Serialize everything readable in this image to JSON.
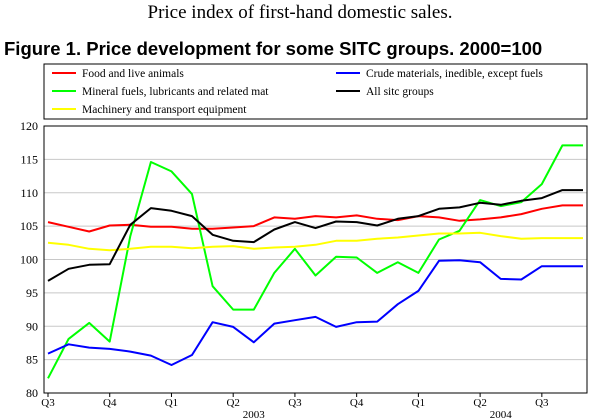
{
  "supertitle": "Price index of first-hand domestic sales.",
  "chart_data": {
    "type": "line",
    "title": "Figure 1. Price development for some SITC groups. 2000=100",
    "xlabel": "",
    "ylabel": "",
    "ylim": [
      80,
      120
    ],
    "yticks": [
      80,
      85,
      90,
      95,
      100,
      105,
      110,
      115,
      120
    ],
    "x": [
      "2002-07",
      "2002-08",
      "2002-09",
      "2002-10",
      "2002-11",
      "2002-12",
      "2003-01",
      "2003-02",
      "2003-03",
      "2003-04",
      "2003-05",
      "2003-06",
      "2003-07",
      "2003-08",
      "2003-09",
      "2003-10",
      "2003-11",
      "2003-12",
      "2004-01",
      "2004-02",
      "2004-03",
      "2004-04",
      "2004-05",
      "2004-06",
      "2004-07",
      "2004-08",
      "2004-09"
    ],
    "quarter_ticks": [
      {
        "label": "Q3",
        "index": 0
      },
      {
        "label": "Q4",
        "index": 3
      },
      {
        "label": "Q1",
        "index": 6
      },
      {
        "label": "Q2",
        "index": 9
      },
      {
        "label": "Q3",
        "index": 12
      },
      {
        "label": "Q4",
        "index": 15
      },
      {
        "label": "Q1",
        "index": 18
      },
      {
        "label": "Q2",
        "index": 21
      },
      {
        "label": "Q3",
        "index": 24
      }
    ],
    "year_labels": [
      {
        "label": "2003",
        "index": 10
      },
      {
        "label": "2004",
        "index": 22
      }
    ],
    "grid": "horizontal",
    "series": [
      {
        "name": "Food and live animals",
        "color": "#ff0000",
        "values": [
          105.6,
          104.9,
          104.2,
          105.1,
          105.2,
          104.9,
          104.9,
          104.6,
          104.6,
          104.8,
          105.0,
          106.3,
          106.1,
          106.5,
          106.3,
          106.6,
          106.1,
          105.9,
          106.5,
          106.3,
          105.8,
          106.0,
          106.3,
          106.8,
          107.6,
          108.1,
          108.1
        ]
      },
      {
        "name": "Mineral fuels, lubricants and related mat",
        "color": "#00ff00",
        "values": [
          82.2,
          88.1,
          90.5,
          87.7,
          103.5,
          114.6,
          113.2,
          109.8,
          96.0,
          92.5,
          92.5,
          98.0,
          101.6,
          97.6,
          100.4,
          100.3,
          98.0,
          99.6,
          98.0,
          103.0,
          104.3,
          108.9,
          108.0,
          108.6,
          111.3,
          117.1,
          117.1
        ]
      },
      {
        "name": "Machinery and transport equipment",
        "color": "#ffff00",
        "values": [
          102.5,
          102.2,
          101.6,
          101.4,
          101.6,
          101.9,
          101.9,
          101.7,
          101.9,
          102.0,
          101.6,
          101.8,
          101.9,
          102.2,
          102.8,
          102.8,
          103.1,
          103.3,
          103.6,
          103.9,
          103.9,
          104.0,
          103.5,
          103.1,
          103.2,
          103.2,
          103.2
        ]
      },
      {
        "name": "Crude materials, inedible, except fuels",
        "color": "#0000ff",
        "values": [
          85.9,
          87.3,
          86.8,
          86.6,
          86.2,
          85.6,
          84.2,
          85.7,
          90.6,
          89.9,
          87.6,
          90.4,
          90.9,
          91.4,
          89.9,
          90.6,
          90.7,
          93.3,
          95.3,
          99.8,
          99.9,
          99.6,
          97.1,
          97.0,
          99.0,
          99.0,
          99.0
        ]
      },
      {
        "name": "All sitc groups",
        "color": "#000000",
        "values": [
          96.8,
          98.6,
          99.2,
          99.3,
          105.2,
          107.7,
          107.3,
          106.5,
          103.7,
          102.8,
          102.6,
          104.5,
          105.6,
          104.7,
          105.7,
          105.6,
          105.1,
          106.1,
          106.5,
          107.6,
          107.8,
          108.5,
          108.2,
          108.8,
          109.2,
          110.4,
          110.4
        ]
      }
    ]
  }
}
